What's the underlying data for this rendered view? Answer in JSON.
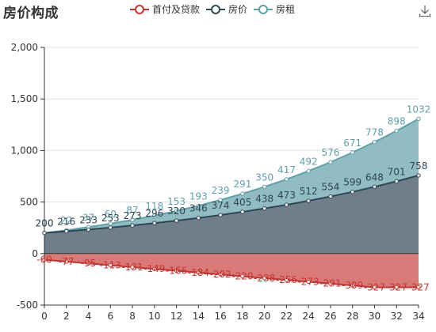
{
  "colors": {
    "loan": "#c23531",
    "loan_fill": "#d97a78",
    "price": "#2f4554",
    "price_fill": "#6e7f8a",
    "rent": "#61a0a8",
    "rent_fill": "#91bcc2",
    "axis": "#333333",
    "grid": "#e0e0e0"
  },
  "icons": {
    "download": "download-icon"
  },
  "chart_data": {
    "type": "area",
    "title": "房价构成",
    "x": [
      0,
      2,
      4,
      6,
      8,
      10,
      12,
      14,
      16,
      18,
      20,
      22,
      24,
      26,
      28,
      30,
      32,
      34
    ],
    "xlim": [
      0,
      34
    ],
    "ylim": [
      -500,
      2000
    ],
    "yticks": [
      -500,
      0,
      500,
      1000,
      1500,
      2000
    ],
    "ytick_labels": [
      "-500",
      "0",
      "500",
      "1,000",
      "1,500",
      "2,000"
    ],
    "legend_position": "top",
    "grid": true,
    "series": [
      {
        "name": "首付及贷款",
        "color_key": "loan",
        "values": [
          -60,
          -77,
          -95,
          -113,
          -131,
          -149,
          -166,
          -184,
          -202,
          -220,
          -238,
          -256,
          -273,
          -291,
          -309,
          -327,
          -327,
          -327
        ]
      },
      {
        "name": "房价",
        "color_key": "price",
        "values": [
          200,
          216,
          233,
          253,
          273,
          296,
          320,
          346,
          374,
          405,
          438,
          473,
          512,
          554,
          599,
          648,
          701,
          758
        ]
      },
      {
        "name": "房租",
        "color_key": "rent",
        "values": [
          200,
          227,
          257,
          290,
          327,
          368,
          414,
          464,
          520,
          581,
          648,
          721,
          801,
          887,
          981,
          1082,
          1191,
          1307
        ],
        "labels": [
          200,
          22,
          37,
          60,
          87,
          118,
          153,
          193,
          239,
          291,
          350,
          417,
          492,
          576,
          671,
          778,
          898,
          1032
        ]
      }
    ]
  }
}
